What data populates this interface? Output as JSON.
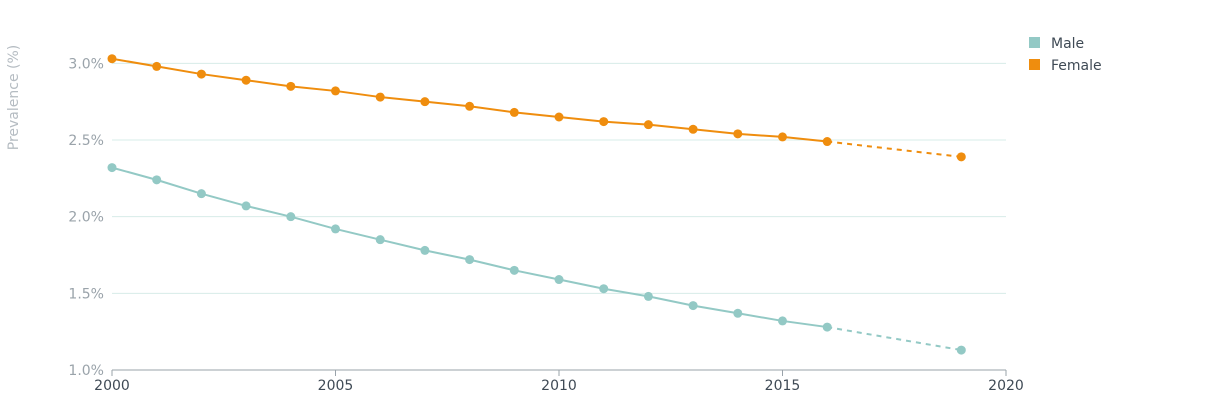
{
  "chart_data": {
    "type": "line",
    "title": "",
    "xlabel": "",
    "ylabel": "Prevalence (%)",
    "xlim": [
      2000,
      2020
    ],
    "ylim": [
      1.0,
      3.25
    ],
    "x_ticks": [
      2000,
      2005,
      2010,
      2015,
      2020
    ],
    "y_ticks": [
      1.0,
      1.5,
      2.0,
      2.5,
      3.0
    ],
    "y_tick_labels": [
      "1.0%",
      "1.5%",
      "2.0%",
      "2.5%",
      "3.0%"
    ],
    "grid": "horizontal",
    "legend_position": "top-right",
    "series": [
      {
        "name": "Male",
        "color": "#93c9c5",
        "x": [
          2000,
          2001,
          2002,
          2003,
          2004,
          2005,
          2006,
          2007,
          2008,
          2009,
          2010,
          2011,
          2012,
          2013,
          2014,
          2015,
          2016,
          2019
        ],
        "values": [
          2.32,
          2.24,
          2.15,
          2.07,
          2.0,
          1.92,
          1.85,
          1.78,
          1.72,
          1.65,
          1.59,
          1.53,
          1.48,
          1.42,
          1.37,
          1.32,
          1.28,
          1.13
        ],
        "projected_from": 2016
      },
      {
        "name": "Female",
        "color": "#ef8d0e",
        "x": [
          2000,
          2001,
          2002,
          2003,
          2004,
          2005,
          2006,
          2007,
          2008,
          2009,
          2010,
          2011,
          2012,
          2013,
          2014,
          2015,
          2016,
          2019
        ],
        "values": [
          3.03,
          2.98,
          2.93,
          2.89,
          2.85,
          2.82,
          2.78,
          2.75,
          2.72,
          2.68,
          2.65,
          2.62,
          2.6,
          2.57,
          2.54,
          2.52,
          2.49,
          2.39
        ],
        "projected_from": 2016
      }
    ]
  }
}
